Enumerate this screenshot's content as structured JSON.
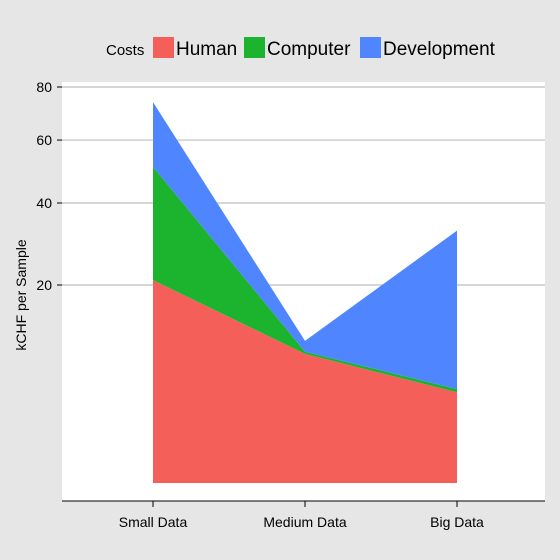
{
  "chart_data": {
    "type": "area",
    "stacked": true,
    "categories": [
      "Small Data",
      "Medium Data",
      "Big Data"
    ],
    "series": [
      {
        "name": "Human",
        "color": "#f45f5a",
        "values": [
          21,
          8.5,
          4.2
        ]
      },
      {
        "name": "Computer",
        "color": "#1cb32e",
        "values": [
          30,
          0.3,
          0.3
        ]
      },
      {
        "name": "Development",
        "color": "#4f86ff",
        "values": [
          23,
          1.5,
          28
        ]
      }
    ],
    "legend": {
      "title": "Costs",
      "placement": "top"
    },
    "ylabel": "kCHF per Sample",
    "xlabel": "",
    "y_scale": "sqrt",
    "ylim": [
      0,
      80
    ],
    "yticks": [
      20,
      40,
      60,
      80
    ],
    "grid": true
  }
}
